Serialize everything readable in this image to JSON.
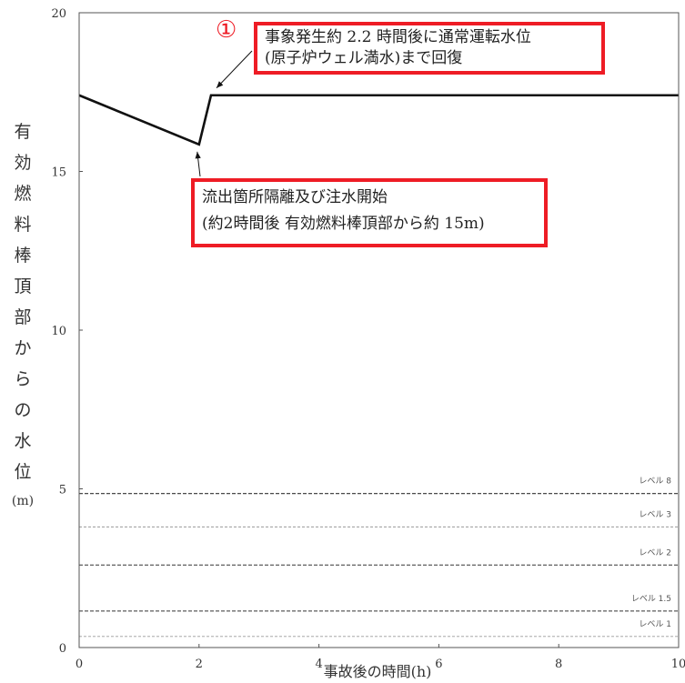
{
  "chart_data": {
    "type": "line",
    "xlabel": "事故後の時間(h)",
    "ylabel_chars": [
      "有",
      "効",
      "燃",
      "料",
      "棒",
      "頂",
      "部",
      "か",
      "ら",
      "の",
      "水",
      "位"
    ],
    "ylabel_unit": "(m)",
    "xlim": [
      0,
      10
    ],
    "ylim": [
      0,
      20
    ],
    "x_ticks": [
      "0",
      "2",
      "4",
      "6",
      "8",
      "10"
    ],
    "y_ticks": [
      "0",
      "5",
      "10",
      "15",
      "20"
    ],
    "series": [
      {
        "x": [
          0,
          2.0,
          2.2,
          10
        ],
        "y": [
          17.4,
          15.85,
          17.4,
          17.4
        ]
      }
    ],
    "reference_lines": [
      {
        "label": "レベル 8",
        "y": 4.85,
        "style": "dashed-dark"
      },
      {
        "label": "レベル 3",
        "y": 3.8,
        "style": "dashed-light"
      },
      {
        "label": "レベル 2",
        "y": 2.6,
        "style": "dashed-dark"
      },
      {
        "label": "レベル 1.5",
        "y": 1.15,
        "style": "dashed-dark"
      },
      {
        "label": "レベル 1",
        "y": 0.35,
        "style": "dashed-light"
      }
    ],
    "annotations": [
      {
        "marker": "①",
        "lines": [
          "事象発生約 2.2 時間後に通常運転水位",
          "(原子炉ウェル満水)まで回復"
        ],
        "target": {
          "x": 2.2,
          "y": 17.4
        },
        "border_color": "#ee1c25"
      },
      {
        "lines": [
          "流出箇所隔離及び注水開始",
          "(約2時間後 有効燃料棒頂部から約 15m)"
        ],
        "target": {
          "x": 2.0,
          "y": 15.85
        },
        "border_color": "#ee1c25"
      }
    ],
    "grid": false
  }
}
